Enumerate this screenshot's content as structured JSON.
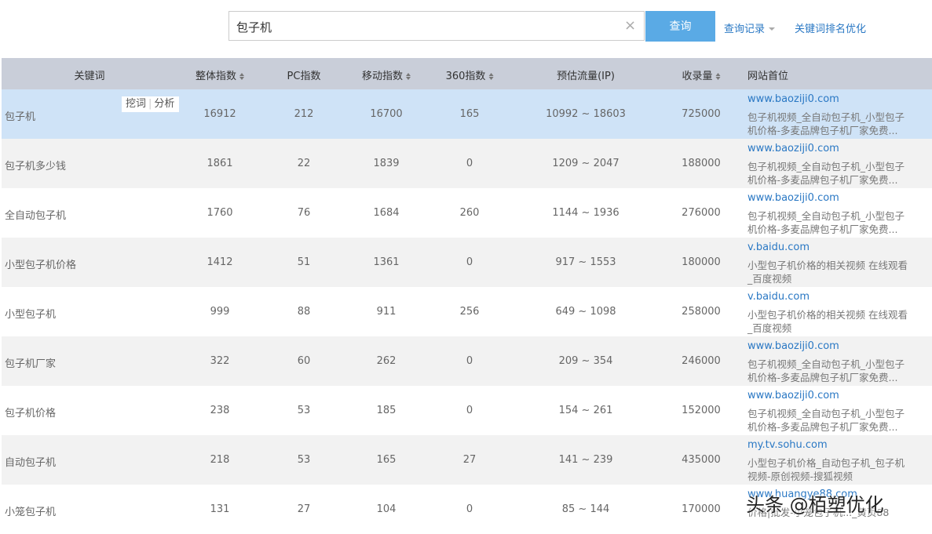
{
  "search": {
    "query": "包子机",
    "button": "查询",
    "links": [
      "查询记录",
      "关键词排名优化"
    ]
  },
  "table": {
    "headers": [
      {
        "label": "关键词",
        "sortable": false
      },
      {
        "label": "整体指数",
        "sortable": true
      },
      {
        "label": "PC指数",
        "sortable": false
      },
      {
        "label": "移动指数",
        "sortable": true
      },
      {
        "label": "360指数",
        "sortable": true
      },
      {
        "label": "预估流量(IP)",
        "sortable": false
      },
      {
        "label": "收录量",
        "sortable": true
      },
      {
        "label": "网站首位",
        "sortable": false
      }
    ],
    "row_actions": [
      "挖词",
      "分析"
    ],
    "selected_row": 0,
    "rows": [
      {
        "cells": [
          "包子机",
          16912,
          212,
          16700,
          165,
          "10992 ~ 18603",
          725000
        ],
        "site": {
          "url": "www.baoziji0.com",
          "desc": [
            "包子机视频_全自动包子机_小型包子",
            "机价格-多麦品牌包子机厂家免费..."
          ]
        }
      },
      {
        "cells": [
          "包子机多少钱",
          1861,
          22,
          1839,
          0,
          "1209 ~ 2047",
          188000
        ],
        "site": {
          "url": "www.baoziji0.com",
          "desc": [
            "包子机视频_全自动包子机_小型包子",
            "机价格-多麦品牌包子机厂家免费..."
          ]
        }
      },
      {
        "cells": [
          "全自动包子机",
          1760,
          76,
          1684,
          260,
          "1144 ~ 1936",
          276000
        ],
        "site": {
          "url": "www.baoziji0.com",
          "desc": [
            "包子机视频_全自动包子机_小型包子",
            "机价格-多麦品牌包子机厂家免费..."
          ]
        }
      },
      {
        "cells": [
          "小型包子机价格",
          1412,
          51,
          1361,
          0,
          "917 ~ 1553",
          180000
        ],
        "site": {
          "url": "v.baidu.com",
          "desc": [
            "小型包子机价格的相关视频 在线观看",
            "_百度视频"
          ]
        }
      },
      {
        "cells": [
          "小型包子机",
          999,
          88,
          911,
          256,
          "649 ~ 1098",
          258000
        ],
        "site": {
          "url": "v.baidu.com",
          "desc": [
            "小型包子机价格的相关视频 在线观看",
            "_百度视频"
          ]
        }
      },
      {
        "cells": [
          "包子机厂家",
          322,
          60,
          262,
          0,
          "209 ~ 354",
          246000
        ],
        "site": {
          "url": "www.baoziji0.com",
          "desc": [
            "包子机视频_全自动包子机_小型包子",
            "机价格-多麦品牌包子机厂家免费..."
          ]
        }
      },
      {
        "cells": [
          "包子机价格",
          238,
          53,
          185,
          0,
          "154 ~ 261",
          152000
        ],
        "site": {
          "url": "www.baoziji0.com",
          "desc": [
            "包子机视频_全自动包子机_小型包子",
            "机价格-多麦品牌包子机厂家免费..."
          ]
        }
      },
      {
        "cells": [
          "自动包子机",
          218,
          53,
          165,
          27,
          "141 ~ 239",
          435000
        ],
        "site": {
          "url": "my.tv.sohu.com",
          "desc": [
            "小型包子机价格_自动包子机_包子机",
            "视频-原创视频-搜狐视频"
          ]
        }
      },
      {
        "cells": [
          "小笼包子机",
          131,
          27,
          104,
          0,
          "85 ~ 144",
          170000
        ],
        "site": {
          "url": "www.huangye88.com",
          "desc": [
            "价格|批发-小笼包子机..._黄页88"
          ]
        }
      }
    ]
  },
  "watermark": "头条 @栢塑优化"
}
